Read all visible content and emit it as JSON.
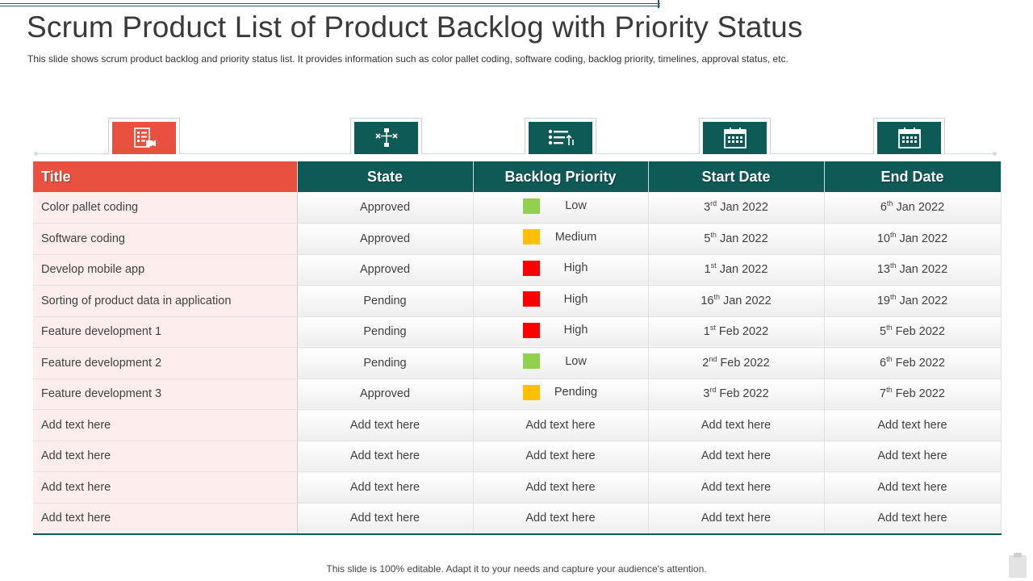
{
  "title": "Scrum Product List of Product Backlog with Priority Status",
  "subtitle": "This slide shows scrum product backlog and priority status list. It provides  information  such as color pallet coding, software coding, backlog priority, timelines, approval  status, etc.",
  "footer": "This slide is 100% editable. Adapt it to your needs and capture your audience's attention.",
  "icons": [
    "checklist-icon",
    "flow-icon",
    "priority-list-icon",
    "calendar-icon",
    "calendar-icon"
  ],
  "colors": {
    "header_red": "#e8513f",
    "header_teal": "#0d5a57",
    "low": "#92d050",
    "medium": "#ffc000",
    "high": "#ff0000",
    "pending": "#ffc000"
  },
  "table": {
    "headers": [
      "Title",
      "State",
      "Backlog Priority",
      "Start Date",
      "End Date"
    ],
    "rows": [
      {
        "title": "Color pallet coding",
        "state": "Approved",
        "priority": "Low",
        "priority_color": "#92d050",
        "start": [
          "3",
          "rd",
          " Jan 2022"
        ],
        "end": [
          "6",
          "th",
          " Jan 2022"
        ]
      },
      {
        "title": "Software coding",
        "state": "Approved",
        "priority": "Medium",
        "priority_color": "#ffc000",
        "start": [
          "5",
          "th",
          " Jan 2022"
        ],
        "end": [
          "10",
          "th",
          " Jan 2022"
        ]
      },
      {
        "title": "Develop mobile app",
        "state": "Approved",
        "priority": "High",
        "priority_color": "#ff0000",
        "start": [
          "1",
          "st",
          " Jan 2022"
        ],
        "end": [
          "13",
          "th",
          " Jan 2022"
        ]
      },
      {
        "title": "Sorting of product data in application",
        "state": "Pending",
        "priority": "High",
        "priority_color": "#ff0000",
        "start": [
          "16",
          "th",
          " Jan 2022"
        ],
        "end": [
          "19",
          "th",
          " Jan 2022"
        ]
      },
      {
        "title": "Feature development 1",
        "state": "Pending",
        "priority": "High",
        "priority_color": "#ff0000",
        "start": [
          "1",
          "st",
          " Feb 2022"
        ],
        "end": [
          "5",
          "th",
          " Feb 2022"
        ]
      },
      {
        "title": "Feature development 2",
        "state": "Pending",
        "priority": "Low",
        "priority_color": "#92d050",
        "start": [
          "2",
          "nd",
          " Feb 2022"
        ],
        "end": [
          "6",
          "th",
          " Feb 2022"
        ]
      },
      {
        "title": "Feature development 3",
        "state": "Approved",
        "priority": "Pending",
        "priority_color": "#ffc000",
        "start": [
          "3",
          "rd",
          " Feb 2022"
        ],
        "end": [
          "7",
          "th",
          " Feb 2022"
        ]
      },
      {
        "title": "Add text here",
        "state": "Add text here",
        "priority": "Add text here",
        "priority_color": "",
        "start": [
          "Add text here",
          "",
          ""
        ],
        "end": [
          "Add text here",
          "",
          ""
        ]
      },
      {
        "title": "Add text here",
        "state": "Add text here",
        "priority": "Add text here",
        "priority_color": "",
        "start": [
          "Add text here",
          "",
          ""
        ],
        "end": [
          "Add text here",
          "",
          ""
        ]
      },
      {
        "title": "Add text here",
        "state": "Add text here",
        "priority": "Add text here",
        "priority_color": "",
        "start": [
          "Add text here",
          "",
          ""
        ],
        "end": [
          "Add text here",
          "",
          ""
        ]
      },
      {
        "title": "Add text here",
        "state": "Add text here",
        "priority": "Add text here",
        "priority_color": "",
        "start": [
          "Add text here",
          "",
          ""
        ],
        "end": [
          "Add text here",
          "",
          ""
        ]
      }
    ]
  }
}
